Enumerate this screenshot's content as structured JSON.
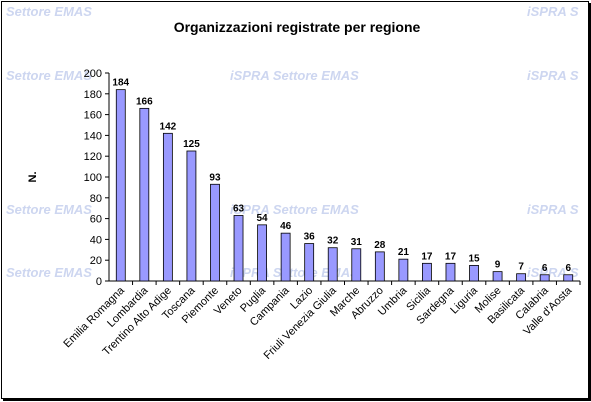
{
  "chart_data": {
    "type": "bar",
    "title": "Organizzazioni registrate per regione",
    "ylabel": "N.",
    "xlabel": "",
    "ylim": [
      0,
      200
    ],
    "ytick_step": 20,
    "grid": false,
    "watermark": "iSPRA Settore EMAS",
    "colors": {
      "bar": "#9999ff",
      "bar_edge": "#000000"
    },
    "categories": [
      "Emilia Romagna",
      "Lombardia",
      "Trentino Alto Adige",
      "Toscana",
      "Piemonte",
      "Veneto",
      "Puglia",
      "Campania",
      "Lazio",
      "Friuli Venezia Giulia",
      "Marche",
      "Abruzzo",
      "Umbria",
      "Sicilia",
      "Sardegna",
      "Liguria",
      "Molise",
      "Basilicata",
      "Calabria",
      "Valle d'Aosta"
    ],
    "values": [
      184,
      166,
      142,
      125,
      93,
      63,
      54,
      46,
      36,
      32,
      31,
      28,
      21,
      17,
      17,
      15,
      9,
      7,
      6,
      6
    ]
  }
}
